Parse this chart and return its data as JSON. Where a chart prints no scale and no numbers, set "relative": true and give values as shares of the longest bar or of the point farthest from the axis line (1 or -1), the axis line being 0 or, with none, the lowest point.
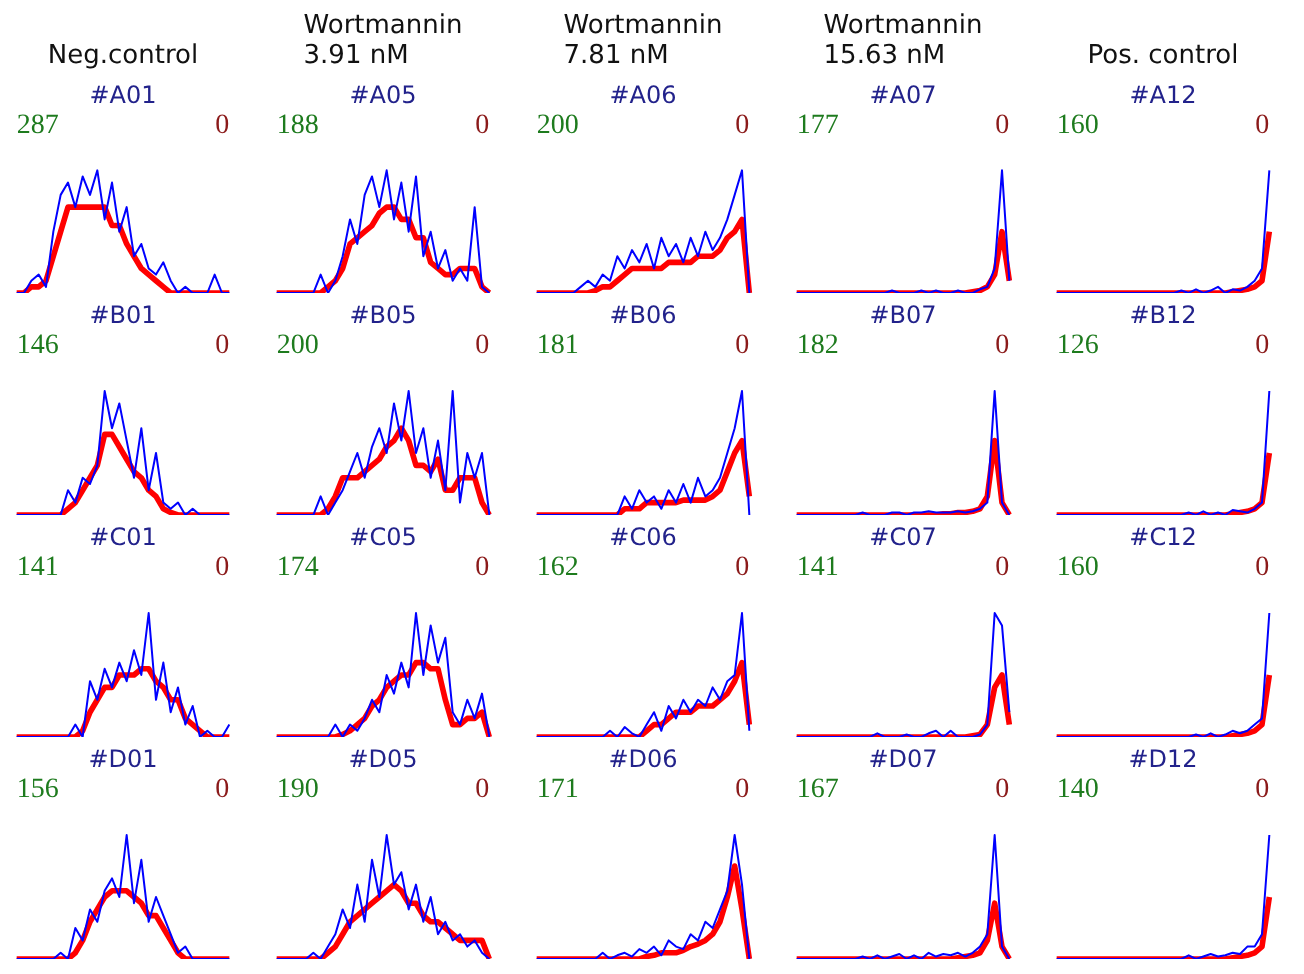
{
  "chart_data": [
    {
      "type": "line",
      "title": "Neg.control",
      "subtitle": "#A01",
      "annotations": [
        "287",
        "0"
      ],
      "relative": true,
      "categories": [
        null,
        null,
        null,
        null,
        null,
        null,
        null,
        null,
        null,
        null,
        null,
        null,
        null,
        null,
        null,
        null,
        null,
        null,
        null,
        null,
        null,
        null,
        null,
        null,
        null,
        null,
        null,
        null,
        null,
        null
      ],
      "series": [
        {
          "color": "#0000ff",
          "values": [
            0,
            0,
            0.1,
            0.15,
            0.05,
            0.5,
            0.8,
            0.9,
            0.7,
            0.95,
            0.8,
            1.0,
            0.6,
            0.9,
            0.5,
            0.7,
            0.3,
            0.4,
            0.2,
            0.15,
            0.25,
            0.1,
            0,
            0.05,
            0,
            0,
            0,
            0.15,
            0,
            0
          ]
        },
        {
          "color": "#ff0000",
          "values": [
            0,
            0,
            0.05,
            0.05,
            0.1,
            0.3,
            0.5,
            0.7,
            0.7,
            0.7,
            0.7,
            0.7,
            0.7,
            0.55,
            0.55,
            0.4,
            0.3,
            0.2,
            0.15,
            0.1,
            0.05,
            0,
            0,
            0,
            0,
            0,
            0,
            0,
            0,
            0
          ]
        }
      ]
    },
    {
      "type": "line",
      "title": "Wortmannin\n3.91 nM",
      "subtitle": "#A05",
      "annotations": [
        "188",
        "0"
      ],
      "relative": true,
      "categories": [
        null,
        null,
        null,
        null,
        null,
        null,
        null,
        null,
        null,
        null,
        null,
        null,
        null,
        null,
        null,
        null,
        null,
        null,
        null,
        null,
        null,
        null,
        null,
        null,
        null,
        null,
        null,
        null,
        null,
        null
      ],
      "series": [
        {
          "color": "#0000ff",
          "values": [
            0,
            0,
            0,
            0,
            0,
            0,
            0.15,
            0,
            0.1,
            0.3,
            0.6,
            0.4,
            0.8,
            0.95,
            0.7,
            1.0,
            0.6,
            0.9,
            0.5,
            0.95,
            0.3,
            0.5,
            0.2,
            0.35,
            0.1,
            0.2,
            0.1,
            0.7,
            0.05,
            0
          ]
        },
        {
          "color": "#ff0000",
          "values": [
            0,
            0,
            0,
            0,
            0,
            0,
            0,
            0.05,
            0.1,
            0.2,
            0.4,
            0.45,
            0.5,
            0.55,
            0.65,
            0.7,
            0.7,
            0.6,
            0.6,
            0.45,
            0.45,
            0.25,
            0.2,
            0.15,
            0.15,
            0.2,
            0.2,
            0.2,
            0.05,
            0
          ]
        }
      ]
    },
    {
      "type": "line",
      "title": "Wortmannin\n7.81 nM",
      "subtitle": "#A06",
      "annotations": [
        "200",
        "0"
      ],
      "relative": true,
      "categories": [
        null,
        null,
        null,
        null,
        null,
        null,
        null,
        null,
        null,
        null,
        null,
        null,
        null,
        null,
        null,
        null,
        null,
        null,
        null,
        null,
        null,
        null,
        null,
        null,
        null,
        null,
        null,
        null,
        null,
        null
      ],
      "series": [
        {
          "color": "#0000ff",
          "values": [
            0,
            0,
            0,
            0,
            0,
            0,
            0.05,
            0.1,
            0.05,
            0.15,
            0.1,
            0.3,
            0.2,
            0.35,
            0.25,
            0.4,
            0.2,
            0.45,
            0.3,
            0.4,
            0.25,
            0.45,
            0.3,
            0.5,
            0.35,
            0.45,
            0.6,
            0.8,
            1.0,
            0
          ]
        },
        {
          "color": "#ff0000",
          "values": [
            0,
            0,
            0,
            0,
            0,
            0,
            0,
            0,
            0.02,
            0.05,
            0.05,
            0.1,
            0.15,
            0.2,
            0.2,
            0.2,
            0.2,
            0.2,
            0.25,
            0.25,
            0.25,
            0.25,
            0.3,
            0.3,
            0.3,
            0.35,
            0.45,
            0.5,
            0.6,
            0
          ]
        }
      ]
    },
    {
      "type": "line",
      "title": "Wortmannin\n15.63 nM",
      "subtitle": "#A07",
      "annotations": [
        "177",
        "0"
      ],
      "relative": true,
      "categories": [
        null,
        null,
        null,
        null,
        null,
        null,
        null,
        null,
        null,
        null,
        null,
        null,
        null,
        null,
        null,
        null,
        null,
        null,
        null,
        null,
        null,
        null,
        null,
        null,
        null,
        null,
        null,
        null,
        null,
        null
      ],
      "series": [
        {
          "color": "#0000ff",
          "values": [
            0,
            0,
            0,
            0,
            0,
            0,
            0,
            0,
            0,
            0,
            0,
            0,
            0,
            0.02,
            0,
            0,
            0,
            0.02,
            0,
            0.02,
            0,
            0,
            0.02,
            0,
            0,
            0.03,
            0.05,
            0.2,
            1.0,
            0.1
          ]
        },
        {
          "color": "#ff0000",
          "values": [
            0,
            0,
            0,
            0,
            0,
            0,
            0,
            0,
            0,
            0,
            0,
            0,
            0,
            0,
            0,
            0,
            0,
            0,
            0,
            0,
            0,
            0,
            0,
            0,
            0.01,
            0.02,
            0.05,
            0.15,
            0.5,
            0.1
          ]
        }
      ]
    },
    {
      "type": "line",
      "title": "Pos. control",
      "subtitle": "#A12",
      "annotations": [
        "160",
        "0"
      ],
      "relative": true,
      "categories": [
        null,
        null,
        null,
        null,
        null,
        null,
        null,
        null,
        null,
        null,
        null,
        null,
        null,
        null,
        null,
        null,
        null,
        null,
        null,
        null,
        null,
        null,
        null,
        null,
        null,
        null,
        null,
        null,
        null,
        null
      ],
      "series": [
        {
          "color": "#0000ff",
          "values": [
            0,
            0,
            0,
            0,
            0,
            0,
            0,
            0,
            0,
            0,
            0,
            0,
            0,
            0,
            0,
            0,
            0,
            0.02,
            0,
            0.03,
            0,
            0.02,
            0.05,
            0,
            0.03,
            0.02,
            0.05,
            0.1,
            0.2,
            1.0
          ]
        },
        {
          "color": "#ff0000",
          "values": [
            0,
            0,
            0,
            0,
            0,
            0,
            0,
            0,
            0,
            0,
            0,
            0,
            0,
            0,
            0,
            0,
            0,
            0,
            0,
            0,
            0,
            0,
            0,
            0,
            0.01,
            0.02,
            0.03,
            0.05,
            0.1,
            0.5
          ]
        }
      ]
    },
    {
      "type": "line",
      "subtitle": "#B01",
      "annotations": [
        "146",
        "0"
      ],
      "relative": true,
      "categories": [
        null,
        null,
        null,
        null,
        null,
        null,
        null,
        null,
        null,
        null,
        null,
        null,
        null,
        null,
        null,
        null,
        null,
        null,
        null,
        null,
        null,
        null,
        null,
        null,
        null,
        null,
        null,
        null,
        null,
        null
      ],
      "series": [
        {
          "color": "#0000ff",
          "values": [
            0,
            0,
            0,
            0,
            0,
            0,
            0,
            0.2,
            0.1,
            0.3,
            0.25,
            0.4,
            1.0,
            0.7,
            0.9,
            0.6,
            0.3,
            0.7,
            0.2,
            0.5,
            0.1,
            0.05,
            0.1,
            0,
            0.05,
            0,
            0,
            0,
            0,
            0
          ]
        },
        {
          "color": "#ff0000",
          "values": [
            0,
            0,
            0,
            0,
            0,
            0,
            0,
            0.05,
            0.1,
            0.2,
            0.3,
            0.4,
            0.65,
            0.65,
            0.55,
            0.45,
            0.35,
            0.3,
            0.2,
            0.15,
            0.05,
            0.02,
            0,
            0,
            0,
            0,
            0,
            0,
            0,
            0
          ]
        }
      ]
    },
    {
      "type": "line",
      "subtitle": "#B05",
      "annotations": [
        "200",
        "0"
      ],
      "relative": true,
      "categories": [
        null,
        null,
        null,
        null,
        null,
        null,
        null,
        null,
        null,
        null,
        null,
        null,
        null,
        null,
        null,
        null,
        null,
        null,
        null,
        null,
        null,
        null,
        null,
        null,
        null,
        null,
        null,
        null,
        null,
        null
      ],
      "series": [
        {
          "color": "#0000ff",
          "values": [
            0,
            0,
            0,
            0,
            0,
            0,
            0.15,
            0,
            0.1,
            0.2,
            0.35,
            0.5,
            0.3,
            0.55,
            0.7,
            0.5,
            0.9,
            0.6,
            1.0,
            0.5,
            0.7,
            0.3,
            0.6,
            0.2,
            1.0,
            0.1,
            0.5,
            0.3,
            0.5,
            0
          ]
        },
        {
          "color": "#ff0000",
          "values": [
            0,
            0,
            0,
            0,
            0,
            0,
            0,
            0.05,
            0.15,
            0.3,
            0.3,
            0.3,
            0.35,
            0.4,
            0.45,
            0.55,
            0.6,
            0.7,
            0.6,
            0.4,
            0.4,
            0.35,
            0.45,
            0.2,
            0.2,
            0.3,
            0.3,
            0.3,
            0.1,
            0
          ]
        }
      ]
    },
    {
      "type": "line",
      "subtitle": "#B06",
      "annotations": [
        "181",
        "0"
      ],
      "relative": true,
      "categories": [
        null,
        null,
        null,
        null,
        null,
        null,
        null,
        null,
        null,
        null,
        null,
        null,
        null,
        null,
        null,
        null,
        null,
        null,
        null,
        null,
        null,
        null,
        null,
        null,
        null,
        null,
        null,
        null,
        null,
        null
      ],
      "series": [
        {
          "color": "#0000ff",
          "values": [
            0,
            0,
            0,
            0,
            0,
            0,
            0,
            0,
            0,
            0,
            0,
            0,
            0.15,
            0.05,
            0.2,
            0.1,
            0.15,
            0.05,
            0.2,
            0.1,
            0.25,
            0.1,
            0.3,
            0.15,
            0.2,
            0.3,
            0.5,
            0.7,
            1.0,
            0
          ]
        },
        {
          "color": "#ff0000",
          "values": [
            0,
            0,
            0,
            0,
            0,
            0,
            0,
            0,
            0,
            0,
            0,
            0,
            0.05,
            0.05,
            0.05,
            0.1,
            0.1,
            0.1,
            0.1,
            0.1,
            0.12,
            0.12,
            0.12,
            0.12,
            0.15,
            0.2,
            0.35,
            0.5,
            0.6,
            0.15
          ]
        }
      ]
    },
    {
      "type": "line",
      "subtitle": "#B07",
      "annotations": [
        "182",
        "0"
      ],
      "relative": true,
      "categories": [
        null,
        null,
        null,
        null,
        null,
        null,
        null,
        null,
        null,
        null,
        null,
        null,
        null,
        null,
        null,
        null,
        null,
        null,
        null,
        null,
        null,
        null,
        null,
        null,
        null,
        null,
        null,
        null,
        null,
        null
      ],
      "series": [
        {
          "color": "#0000ff",
          "values": [
            0,
            0,
            0,
            0,
            0,
            0,
            0,
            0,
            0,
            0.02,
            0,
            0,
            0,
            0.02,
            0.02,
            0,
            0.02,
            0.02,
            0.03,
            0.02,
            0.02,
            0.02,
            0.03,
            0.02,
            0.03,
            0.05,
            0.1,
            1.0,
            0.1,
            0
          ]
        },
        {
          "color": "#ff0000",
          "values": [
            0,
            0,
            0,
            0,
            0,
            0,
            0,
            0,
            0,
            0,
            0,
            0,
            0,
            0,
            0,
            0,
            0,
            0,
            0,
            0,
            0.01,
            0.01,
            0.02,
            0.02,
            0.03,
            0.05,
            0.15,
            0.6,
            0.1,
            0
          ]
        }
      ]
    },
    {
      "type": "line",
      "subtitle": "#B12",
      "annotations": [
        "126",
        "0"
      ],
      "relative": true,
      "categories": [
        null,
        null,
        null,
        null,
        null,
        null,
        null,
        null,
        null,
        null,
        null,
        null,
        null,
        null,
        null,
        null,
        null,
        null,
        null,
        null,
        null,
        null,
        null,
        null,
        null,
        null,
        null,
        null,
        null,
        null
      ],
      "series": [
        {
          "color": "#0000ff",
          "values": [
            0,
            0,
            0,
            0,
            0,
            0,
            0,
            0,
            0,
            0,
            0,
            0,
            0,
            0,
            0,
            0,
            0,
            0,
            0.02,
            0,
            0.03,
            0,
            0.02,
            0,
            0.04,
            0.03,
            0.02,
            0.05,
            0.1,
            1.0
          ]
        },
        {
          "color": "#ff0000",
          "values": [
            0,
            0,
            0,
            0,
            0,
            0,
            0,
            0,
            0,
            0,
            0,
            0,
            0,
            0,
            0,
            0,
            0,
            0,
            0,
            0,
            0,
            0,
            0,
            0,
            0.01,
            0.02,
            0.03,
            0.05,
            0.1,
            0.5
          ]
        }
      ]
    },
    {
      "type": "line",
      "subtitle": "#C01",
      "annotations": [
        "141",
        "0"
      ],
      "relative": true,
      "categories": [
        null,
        null,
        null,
        null,
        null,
        null,
        null,
        null,
        null,
        null,
        null,
        null,
        null,
        null,
        null,
        null,
        null,
        null,
        null,
        null,
        null,
        null,
        null,
        null,
        null,
        null,
        null,
        null,
        null,
        null
      ],
      "series": [
        {
          "color": "#0000ff",
          "values": [
            0,
            0,
            0,
            0,
            0,
            0,
            0,
            0,
            0.1,
            0,
            0.45,
            0.3,
            0.55,
            0.4,
            0.6,
            0.45,
            0.7,
            0.5,
            1.0,
            0.3,
            0.6,
            0.2,
            0.4,
            0.1,
            0.25,
            0,
            0.05,
            0,
            0,
            0.1
          ]
        },
        {
          "color": "#ff0000",
          "values": [
            0,
            0,
            0,
            0,
            0,
            0,
            0,
            0,
            0,
            0.05,
            0.2,
            0.3,
            0.4,
            0.4,
            0.5,
            0.5,
            0.5,
            0.55,
            0.55,
            0.45,
            0.4,
            0.3,
            0.3,
            0.15,
            0.1,
            0.05,
            0,
            0,
            0,
            0
          ]
        }
      ]
    },
    {
      "type": "line",
      "subtitle": "#C05",
      "annotations": [
        "174",
        "0"
      ],
      "relative": true,
      "categories": [
        null,
        null,
        null,
        null,
        null,
        null,
        null,
        null,
        null,
        null,
        null,
        null,
        null,
        null,
        null,
        null,
        null,
        null,
        null,
        null,
        null,
        null,
        null,
        null,
        null,
        null,
        null,
        null,
        null,
        null
      ],
      "series": [
        {
          "color": "#0000ff",
          "values": [
            0,
            0,
            0,
            0,
            0,
            0,
            0,
            0,
            0.1,
            0,
            0.1,
            0.05,
            0.15,
            0.3,
            0.2,
            0.5,
            0.35,
            0.6,
            0.4,
            1.0,
            0.5,
            0.9,
            0.6,
            0.8,
            0.2,
            0.1,
            0.3,
            0.15,
            0.35,
            0
          ]
        },
        {
          "color": "#ff0000",
          "values": [
            0,
            0,
            0,
            0,
            0,
            0,
            0,
            0,
            0,
            0.02,
            0.05,
            0.1,
            0.15,
            0.25,
            0.3,
            0.4,
            0.45,
            0.5,
            0.5,
            0.6,
            0.6,
            0.55,
            0.55,
            0.3,
            0.1,
            0.1,
            0.15,
            0.15,
            0.2,
            0
          ]
        }
      ]
    },
    {
      "type": "line",
      "subtitle": "#C06",
      "annotations": [
        "162",
        "0"
      ],
      "relative": true,
      "categories": [
        null,
        null,
        null,
        null,
        null,
        null,
        null,
        null,
        null,
        null,
        null,
        null,
        null,
        null,
        null,
        null,
        null,
        null,
        null,
        null,
        null,
        null,
        null,
        null,
        null,
        null,
        null,
        null,
        null,
        null
      ],
      "series": [
        {
          "color": "#0000ff",
          "values": [
            0,
            0,
            0,
            0,
            0,
            0,
            0,
            0,
            0,
            0,
            0.05,
            0,
            0.08,
            0.03,
            0,
            0.1,
            0.2,
            0.05,
            0.25,
            0.15,
            0.3,
            0.2,
            0.3,
            0.25,
            0.4,
            0.3,
            0.45,
            0.5,
            1.0,
            0.05
          ]
        },
        {
          "color": "#ff0000",
          "values": [
            0,
            0,
            0,
            0,
            0,
            0,
            0,
            0,
            0,
            0,
            0,
            0,
            0,
            0,
            0,
            0.05,
            0.1,
            0.1,
            0.15,
            0.2,
            0.2,
            0.2,
            0.25,
            0.25,
            0.25,
            0.3,
            0.35,
            0.45,
            0.6,
            0.1
          ]
        }
      ]
    },
    {
      "type": "line",
      "subtitle": "#C07",
      "annotations": [
        "141",
        "0"
      ],
      "relative": true,
      "categories": [
        null,
        null,
        null,
        null,
        null,
        null,
        null,
        null,
        null,
        null,
        null,
        null,
        null,
        null,
        null,
        null,
        null,
        null,
        null,
        null,
        null,
        null,
        null,
        null,
        null,
        null,
        null,
        null,
        null,
        null
      ],
      "series": [
        {
          "color": "#0000ff",
          "values": [
            0,
            0,
            0,
            0,
            0,
            0,
            0,
            0,
            0,
            0,
            0,
            0.03,
            0,
            0,
            0,
            0.02,
            0,
            0,
            0.03,
            0.05,
            0,
            0.05,
            0,
            0,
            0,
            0.02,
            0.1,
            1.0,
            0.9,
            0.2
          ]
        },
        {
          "color": "#ff0000",
          "values": [
            0,
            0,
            0,
            0,
            0,
            0,
            0,
            0,
            0,
            0,
            0,
            0,
            0,
            0,
            0,
            0,
            0,
            0,
            0,
            0,
            0,
            0,
            0,
            0,
            0.01,
            0.02,
            0.1,
            0.4,
            0.5,
            0.1
          ]
        }
      ]
    },
    {
      "type": "line",
      "subtitle": "#C12",
      "annotations": [
        "160",
        "0"
      ],
      "relative": true,
      "categories": [
        null,
        null,
        null,
        null,
        null,
        null,
        null,
        null,
        null,
        null,
        null,
        null,
        null,
        null,
        null,
        null,
        null,
        null,
        null,
        null,
        null,
        null,
        null,
        null,
        null,
        null,
        null,
        null,
        null,
        null
      ],
      "series": [
        {
          "color": "#0000ff",
          "values": [
            0,
            0,
            0,
            0,
            0,
            0,
            0,
            0,
            0,
            0,
            0,
            0,
            0,
            0,
            0,
            0,
            0,
            0,
            0,
            0.02,
            0,
            0.03,
            0,
            0.02,
            0.05,
            0.03,
            0.05,
            0.1,
            0.15,
            1.0
          ]
        },
        {
          "color": "#ff0000",
          "values": [
            0,
            0,
            0,
            0,
            0,
            0,
            0,
            0,
            0,
            0,
            0,
            0,
            0,
            0,
            0,
            0,
            0,
            0,
            0,
            0,
            0,
            0,
            0,
            0,
            0.01,
            0.02,
            0.03,
            0.05,
            0.1,
            0.5
          ]
        }
      ]
    },
    {
      "type": "line",
      "subtitle": "#D01",
      "annotations": [
        "156",
        "0"
      ],
      "relative": true,
      "categories": [
        null,
        null,
        null,
        null,
        null,
        null,
        null,
        null,
        null,
        null,
        null,
        null,
        null,
        null,
        null,
        null,
        null,
        null,
        null,
        null,
        null,
        null,
        null,
        null,
        null,
        null,
        null,
        null,
        null,
        null
      ],
      "series": [
        {
          "color": "#0000ff",
          "values": [
            0,
            0,
            0,
            0,
            0,
            0,
            0.05,
            0,
            0.25,
            0.15,
            0.4,
            0.3,
            0.55,
            0.65,
            0.5,
            1.0,
            0.45,
            0.8,
            0.3,
            0.5,
            0.35,
            0.2,
            0.05,
            0.1,
            0,
            0,
            0,
            0,
            0,
            0
          ]
        },
        {
          "color": "#ff0000",
          "values": [
            0,
            0,
            0,
            0,
            0,
            0,
            0,
            0,
            0.05,
            0.15,
            0.3,
            0.4,
            0.5,
            0.55,
            0.55,
            0.55,
            0.5,
            0.45,
            0.35,
            0.35,
            0.25,
            0.15,
            0.05,
            0,
            0,
            0,
            0,
            0,
            0,
            0
          ]
        }
      ]
    },
    {
      "type": "line",
      "subtitle": "#D05",
      "annotations": [
        "190",
        "0"
      ],
      "relative": true,
      "categories": [
        null,
        null,
        null,
        null,
        null,
        null,
        null,
        null,
        null,
        null,
        null,
        null,
        null,
        null,
        null,
        null,
        null,
        null,
        null,
        null,
        null,
        null,
        null,
        null,
        null,
        null,
        null,
        null,
        null,
        null
      ],
      "series": [
        {
          "color": "#0000ff",
          "values": [
            0,
            0,
            0,
            0,
            0,
            0.05,
            0,
            0.1,
            0.2,
            0.4,
            0.25,
            0.6,
            0.3,
            0.8,
            0.5,
            1.0,
            0.6,
            0.7,
            0.4,
            0.6,
            0.3,
            0.5,
            0.2,
            0.3,
            0.15,
            0.2,
            0.1,
            0.15,
            0.05,
            0
          ]
        },
        {
          "color": "#ff0000",
          "values": [
            0,
            0,
            0,
            0,
            0,
            0,
            0,
            0.05,
            0.1,
            0.2,
            0.3,
            0.35,
            0.4,
            0.45,
            0.5,
            0.55,
            0.6,
            0.55,
            0.45,
            0.45,
            0.35,
            0.3,
            0.3,
            0.25,
            0.2,
            0.15,
            0.15,
            0.15,
            0.15,
            0
          ]
        }
      ]
    },
    {
      "type": "line",
      "subtitle": "#D06",
      "annotations": [
        "171",
        "0"
      ],
      "relative": true,
      "categories": [
        null,
        null,
        null,
        null,
        null,
        null,
        null,
        null,
        null,
        null,
        null,
        null,
        null,
        null,
        null,
        null,
        null,
        null,
        null,
        null,
        null,
        null,
        null,
        null,
        null,
        null,
        null,
        null,
        null,
        null
      ],
      "series": [
        {
          "color": "#0000ff",
          "values": [
            0,
            0,
            0,
            0,
            0,
            0,
            0,
            0,
            0,
            0.05,
            0,
            0.03,
            0.05,
            0.02,
            0.08,
            0.05,
            0.1,
            0.03,
            0.15,
            0.1,
            0.08,
            0.2,
            0.15,
            0.3,
            0.25,
            0.4,
            0.55,
            1.0,
            0.6,
            0
          ]
        },
        {
          "color": "#ff0000",
          "values": [
            0,
            0,
            0,
            0,
            0,
            0,
            0,
            0,
            0,
            0,
            0,
            0,
            0,
            0,
            0,
            0.02,
            0.03,
            0.05,
            0.05,
            0.05,
            0.07,
            0.1,
            0.12,
            0.15,
            0.2,
            0.3,
            0.5,
            0.75,
            0.4,
            0
          ]
        }
      ]
    },
    {
      "type": "line",
      "subtitle": "#D07",
      "annotations": [
        "167",
        "0"
      ],
      "relative": true,
      "categories": [
        null,
        null,
        null,
        null,
        null,
        null,
        null,
        null,
        null,
        null,
        null,
        null,
        null,
        null,
        null,
        null,
        null,
        null,
        null,
        null,
        null,
        null,
        null,
        null,
        null,
        null,
        null,
        null,
        null,
        null
      ],
      "series": [
        {
          "color": "#0000ff",
          "values": [
            0,
            0,
            0,
            0,
            0,
            0,
            0,
            0,
            0,
            0.02,
            0,
            0.03,
            0,
            0.02,
            0.04,
            0,
            0.03,
            0,
            0.05,
            0.02,
            0.04,
            0.03,
            0.05,
            0.02,
            0.05,
            0.1,
            0.2,
            1.0,
            0.1,
            0
          ]
        },
        {
          "color": "#ff0000",
          "values": [
            0,
            0,
            0,
            0,
            0,
            0,
            0,
            0,
            0,
            0,
            0,
            0,
            0,
            0,
            0,
            0,
            0,
            0,
            0,
            0,
            0,
            0,
            0.01,
            0.02,
            0.03,
            0.05,
            0.15,
            0.45,
            0.1,
            0
          ]
        }
      ]
    },
    {
      "type": "line",
      "subtitle": "#D12",
      "annotations": [
        "140",
        "0"
      ],
      "relative": true,
      "categories": [
        null,
        null,
        null,
        null,
        null,
        null,
        null,
        null,
        null,
        null,
        null,
        null,
        null,
        null,
        null,
        null,
        null,
        null,
        null,
        null,
        null,
        null,
        null,
        null,
        null,
        null,
        null,
        null,
        null,
        null
      ],
      "series": [
        {
          "color": "#0000ff",
          "values": [
            0,
            0,
            0,
            0,
            0,
            0,
            0,
            0,
            0,
            0,
            0,
            0,
            0,
            0,
            0,
            0,
            0,
            0,
            0.03,
            0,
            0.02,
            0.04,
            0.02,
            0.03,
            0.05,
            0.04,
            0.1,
            0.1,
            0.2,
            1.0
          ]
        },
        {
          "color": "#ff0000",
          "values": [
            0,
            0,
            0,
            0,
            0,
            0,
            0,
            0,
            0,
            0,
            0,
            0,
            0,
            0,
            0,
            0,
            0,
            0,
            0,
            0,
            0,
            0,
            0,
            0,
            0.01,
            0.02,
            0.03,
            0.05,
            0.1,
            0.5
          ]
        }
      ]
    }
  ]
}
